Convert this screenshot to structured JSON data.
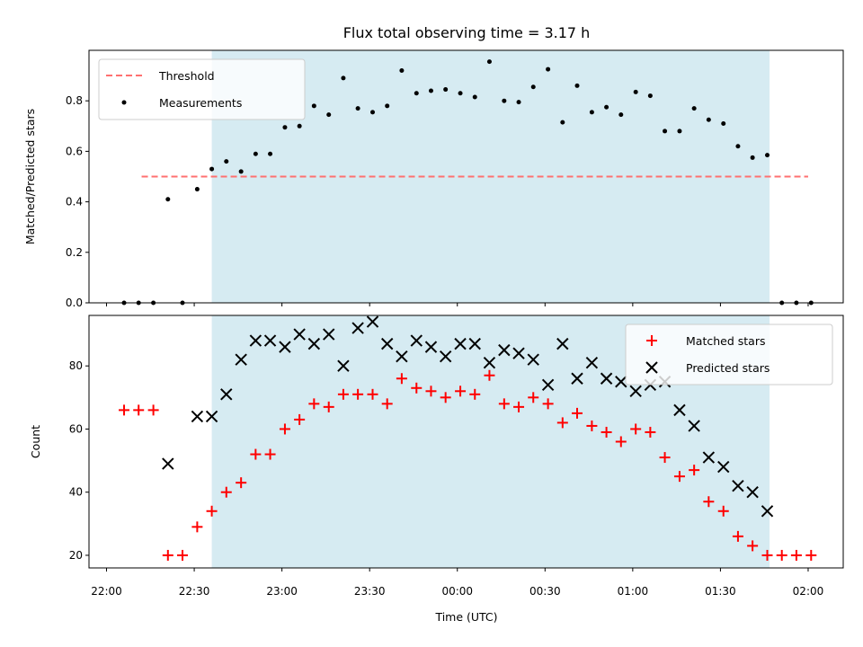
{
  "title": "Flux total observing time = 3.17 h",
  "chart_data": [
    {
      "type": "scatter",
      "ylabel": "Matched/Predicted stars",
      "ylim": [
        0,
        1.0
      ],
      "yticks": [
        "0.0",
        "0.2",
        "0.4",
        "0.6",
        "0.8"
      ],
      "ytick_values": [
        0,
        0.2,
        0.4,
        0.6,
        0.8
      ],
      "threshold": {
        "name": "Threshold",
        "value": 0.5,
        "x_start": 22.2,
        "x_end": 26.0,
        "color": "#ff7070"
      },
      "highlight_span": {
        "x_start": 22.6,
        "x_end": 25.78,
        "color": "#add8e6"
      },
      "legend_position": "top-left",
      "series": [
        {
          "name": "Measurements",
          "color": "#000000",
          "marker": "dot",
          "x": [
            22.1,
            22.183,
            22.267,
            22.35,
            22.433,
            22.517,
            22.6,
            22.683,
            22.767,
            22.85,
            22.933,
            23.017,
            23.1,
            23.183,
            23.267,
            23.35,
            23.433,
            23.517,
            23.6,
            23.683,
            23.767,
            23.85,
            23.933,
            24.017,
            24.1,
            24.183,
            24.267,
            24.35,
            24.433,
            24.517,
            24.6,
            24.683,
            24.767,
            24.85,
            24.933,
            25.017,
            25.1,
            25.183,
            25.267,
            25.35,
            25.433,
            25.517,
            25.6,
            25.683,
            25.767,
            25.85,
            25.933,
            26.017
          ],
          "y": [
            0.0,
            0.0,
            0.0,
            0.41,
            0.0,
            0.45,
            0.53,
            0.56,
            0.52,
            0.59,
            0.59,
            0.695,
            0.7,
            0.78,
            0.745,
            0.89,
            0.77,
            0.755,
            0.78,
            0.92,
            0.83,
            0.84,
            0.845,
            0.83,
            0.815,
            0.955,
            0.8,
            0.795,
            0.855,
            0.925,
            0.715,
            0.86,
            0.755,
            0.775,
            0.745,
            0.835,
            0.82,
            0.68,
            0.68,
            0.77,
            0.725,
            0.71,
            0.62,
            0.575,
            0.585,
            0.0,
            0.0,
            0.0
          ]
        }
      ]
    },
    {
      "type": "scatter",
      "xlabel": "Time (UTC)",
      "ylabel": "Count",
      "xlim": [
        21.9,
        26.2
      ],
      "ylim": [
        16,
        96
      ],
      "xticks": [
        "22:00",
        "22:30",
        "23:00",
        "23:30",
        "00:00",
        "00:30",
        "01:00",
        "01:30",
        "02:00"
      ],
      "xtick_values": [
        22.0,
        22.5,
        23.0,
        23.5,
        24.0,
        24.5,
        25.0,
        25.5,
        26.0
      ],
      "yticks": [
        "20",
        "40",
        "60",
        "80"
      ],
      "ytick_values": [
        20,
        40,
        60,
        80
      ],
      "legend_position": "top-right",
      "series": [
        {
          "name": "Matched stars",
          "color": "#ff0000",
          "marker": "plus",
          "x": [
            22.1,
            22.183,
            22.267,
            22.35,
            22.433,
            22.517,
            22.6,
            22.683,
            22.767,
            22.85,
            22.933,
            23.017,
            23.1,
            23.183,
            23.267,
            23.35,
            23.433,
            23.517,
            23.6,
            23.683,
            23.767,
            23.85,
            23.933,
            24.017,
            24.1,
            24.183,
            24.267,
            24.35,
            24.433,
            24.517,
            24.6,
            24.683,
            24.767,
            24.85,
            24.933,
            25.017,
            25.1,
            25.183,
            25.267,
            25.35,
            25.433,
            25.517,
            25.6,
            25.683,
            25.767,
            25.85,
            25.933,
            26.017
          ],
          "y": [
            66,
            66,
            66,
            20,
            20,
            29,
            34,
            40,
            43,
            52,
            52,
            60,
            63,
            68,
            67,
            71,
            71,
            71,
            68,
            76,
            73,
            72,
            70,
            72,
            71,
            77,
            68,
            67,
            70,
            68,
            62,
            65,
            61,
            59,
            56,
            60,
            59,
            51,
            45,
            47,
            37,
            34,
            26,
            23,
            20,
            20,
            20,
            20
          ]
        },
        {
          "name": "Predicted stars",
          "color": "#000000",
          "marker": "x",
          "x": [
            22.35,
            22.517,
            22.6,
            22.683,
            22.767,
            22.85,
            22.933,
            23.017,
            23.1,
            23.183,
            23.267,
            23.35,
            23.433,
            23.517,
            23.6,
            23.683,
            23.767,
            23.85,
            23.933,
            24.017,
            24.1,
            24.183,
            24.267,
            24.35,
            24.433,
            24.517,
            24.6,
            24.683,
            24.767,
            24.85,
            24.933,
            25.017,
            25.1,
            25.183,
            25.267,
            25.35,
            25.433,
            25.517,
            25.6,
            25.683,
            25.767
          ],
          "y": [
            49,
            64,
            64,
            71,
            82,
            88,
            88,
            86,
            90,
            87,
            90,
            80,
            92,
            94,
            87,
            83,
            88,
            86,
            83,
            87,
            87,
            81,
            85,
            84,
            82,
            74,
            87,
            76,
            81,
            76,
            75,
            72,
            74,
            75,
            66,
            61,
            51,
            48,
            42,
            40,
            34
          ]
        }
      ]
    }
  ]
}
